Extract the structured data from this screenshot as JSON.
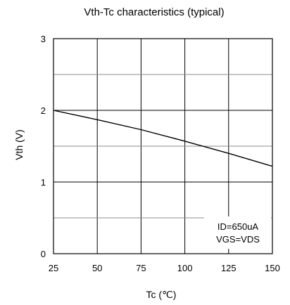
{
  "chart_data": {
    "type": "line",
    "title": "Vth-Tc characteristics (typical)",
    "xlabel": "Tc (℃)",
    "ylabel": "Vth (V)",
    "xlim": [
      25,
      150
    ],
    "ylim": [
      0,
      3
    ],
    "x_ticks": [
      "25",
      "50",
      "75",
      "100",
      "125",
      "150"
    ],
    "y_ticks": [
      "0",
      "1",
      "2",
      "3"
    ],
    "grid": true,
    "legend_position": "bottom-right",
    "annotation_lines": [
      "ID=650uA",
      "VGS=VDS"
    ],
    "series": [
      {
        "x": [
          25,
          50,
          75,
          100,
          125,
          150
        ],
        "y": [
          2.0,
          1.87,
          1.73,
          1.57,
          1.4,
          1.22
        ],
        "color": "#000000"
      }
    ]
  }
}
